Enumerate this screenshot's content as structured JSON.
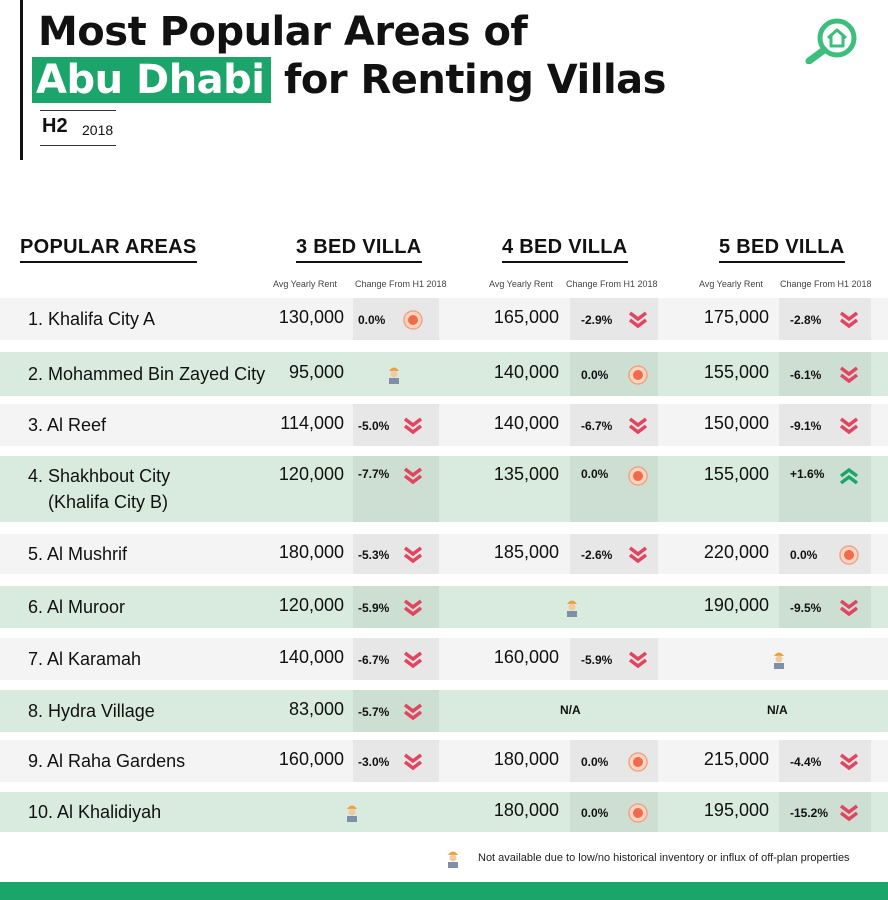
{
  "header": {
    "title_line1": "Most Popular Areas of",
    "title_highlight": "Abu Dhabi",
    "title_line2_rest": "for Renting Villas",
    "period_big": "H2",
    "period_small": "2018"
  },
  "columns": {
    "areas_label": "POPULAR AREAS",
    "groups": [
      {
        "label": "3 BED VILLA",
        "rent_label": "Avg Yearly Rent",
        "change_label": "Change From H1 2018"
      },
      {
        "label": "4 BED VILLA",
        "rent_label": "Avg Yearly Rent",
        "change_label": "Change From H1 2018"
      },
      {
        "label": "5 BED VILLA",
        "rent_label": "Avg Yearly Rent",
        "change_label": "Change From H1 2018"
      }
    ]
  },
  "rows": [
    {
      "area": "1. Khalifa City A",
      "v3": {
        "rent": "130,000",
        "chg": "0.0%",
        "trend": "flat"
      },
      "v4": {
        "rent": "165,000",
        "chg": "-2.9%",
        "trend": "down"
      },
      "v5": {
        "rent": "175,000",
        "chg": "-2.8%",
        "trend": "down"
      }
    },
    {
      "area": "2. Mohammed Bin Zayed City",
      "v3": {
        "rent": "95,000",
        "chg": "",
        "trend": "unavailable"
      },
      "v4": {
        "rent": "140,000",
        "chg": "0.0%",
        "trend": "flat"
      },
      "v5": {
        "rent": "155,000",
        "chg": "-6.1%",
        "trend": "down"
      }
    },
    {
      "area": "3. Al Reef",
      "v3": {
        "rent": "114,000",
        "chg": "-5.0%",
        "trend": "down"
      },
      "v4": {
        "rent": "140,000",
        "chg": "-6.7%",
        "trend": "down"
      },
      "v5": {
        "rent": "150,000",
        "chg": "-9.1%",
        "trend": "down"
      }
    },
    {
      "area": "4. Shakhbout City",
      "area2": "(Khalifa City B)",
      "v3": {
        "rent": "120,000",
        "chg": "-7.7%",
        "trend": "down"
      },
      "v4": {
        "rent": "135,000",
        "chg": "0.0%",
        "trend": "flat"
      },
      "v5": {
        "rent": "155,000",
        "chg": "+1.6%",
        "trend": "up"
      }
    },
    {
      "area": "5. Al Mushrif",
      "v3": {
        "rent": "180,000",
        "chg": "-5.3%",
        "trend": "down"
      },
      "v4": {
        "rent": "185,000",
        "chg": "-2.6%",
        "trend": "down"
      },
      "v5": {
        "rent": "220,000",
        "chg": "0.0%",
        "trend": "flat"
      }
    },
    {
      "area": "6. Al Muroor",
      "v3": {
        "rent": "120,000",
        "chg": "-5.9%",
        "trend": "down"
      },
      "v4": {
        "rent": "",
        "chg": "",
        "trend": "unavailable"
      },
      "v5": {
        "rent": "190,000",
        "chg": "-9.5%",
        "trend": "down"
      }
    },
    {
      "area": "7. Al Karamah",
      "v3": {
        "rent": "140,000",
        "chg": "-6.7%",
        "trend": "down"
      },
      "v4": {
        "rent": "160,000",
        "chg": "-5.9%",
        "trend": "down"
      },
      "v5": {
        "rent": "",
        "chg": "",
        "trend": "unavailable"
      }
    },
    {
      "area": "8. Hydra Village",
      "v3": {
        "rent": "83,000",
        "chg": "-5.7%",
        "trend": "down"
      },
      "v4": {
        "rent": "",
        "chg": "N/A",
        "trend": "na"
      },
      "v5": {
        "rent": "",
        "chg": "N/A",
        "trend": "na"
      }
    },
    {
      "area": "9. Al Raha Gardens",
      "v3": {
        "rent": "160,000",
        "chg": "-3.0%",
        "trend": "down"
      },
      "v4": {
        "rent": "180,000",
        "chg": "0.0%",
        "trend": "flat"
      },
      "v5": {
        "rent": "215,000",
        "chg": "-4.4%",
        "trend": "down"
      }
    },
    {
      "area": "10. Al Khalidiyah",
      "v3": {
        "rent": "",
        "chg": "",
        "trend": "unavailable"
      },
      "v4": {
        "rent": "180,000",
        "chg": "0.0%",
        "trend": "flat"
      },
      "v5": {
        "rent": "195,000",
        "chg": "-15.2%",
        "trend": "down"
      }
    }
  ],
  "footnote": "Not available due to low/no historical inventory or influx of off-plan properties",
  "icons": {
    "logo": "house-magnifier-icon",
    "down": "double-chevron-down-icon",
    "up": "double-chevron-up-icon",
    "flat": "circle-dot-icon",
    "unavailable": "construction-worker-icon"
  },
  "colors": {
    "accent": "#1ca56a",
    "down": "#e0465f",
    "up": "#1ca56a",
    "flat": "#f26a4a",
    "row_alt": "#d9ebdf"
  }
}
